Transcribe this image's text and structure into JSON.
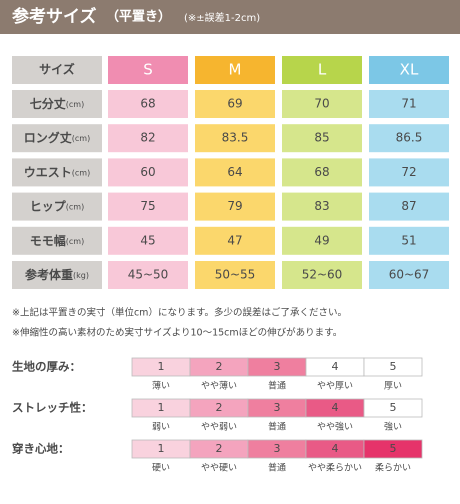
{
  "header": {
    "title": "参考サイズ",
    "subtitle": "（平置き）",
    "note": "(※±誤差1-2cm)"
  },
  "table": {
    "corner": "サイズ",
    "sizes": [
      {
        "name": "S",
        "color": "#f08db1",
        "light": "#f8c8d8"
      },
      {
        "name": "M",
        "color": "#f6b52f",
        "light": "#fbd76c"
      },
      {
        "name": "L",
        "color": "#b7d54b",
        "light": "#d6e68c"
      },
      {
        "name": "XL",
        "color": "#7cc7e6",
        "light": "#a9dcef"
      }
    ],
    "rows": [
      {
        "label": "七分丈",
        "unit": "(cm)",
        "values": [
          "68",
          "69",
          "70",
          "71"
        ]
      },
      {
        "label": "ロング丈",
        "unit": "(cm)",
        "values": [
          "82",
          "83.5",
          "85",
          "86.5"
        ]
      },
      {
        "label": "ウエスト",
        "unit": "(cm)",
        "values": [
          "60",
          "64",
          "68",
          "72"
        ]
      },
      {
        "label": "ヒップ",
        "unit": "(cm)",
        "values": [
          "75",
          "79",
          "83",
          "87"
        ]
      },
      {
        "label": "モモ幅",
        "unit": "(cm)",
        "values": [
          "45",
          "47",
          "49",
          "51"
        ]
      },
      {
        "label": "参考体重",
        "unit": "(kg)",
        "values": [
          "45~50",
          "50~55",
          "52~60",
          "60~67"
        ]
      }
    ]
  },
  "notes": [
    "※上記は平置きの実寸（単位cm）になります。多少の誤差はご了承ください。",
    "※伸縮性の高い素材のため実寸サイズより10～15cmほどの伸びがあります。"
  ],
  "scale_colors": [
    "#f9d2de",
    "#f4a4be",
    "#ef7f9f",
    "#e95a86",
    "#e6336a"
  ],
  "scales": [
    {
      "label": "生地の厚み：",
      "level": 3,
      "steps": [
        "1",
        "2",
        "3",
        "4",
        "5"
      ],
      "texts": [
        "薄い",
        "やや薄い",
        "普通",
        "やや厚い",
        "厚い"
      ]
    },
    {
      "label": "ストレッチ性：",
      "level": 4,
      "steps": [
        "1",
        "2",
        "3",
        "4",
        "5"
      ],
      "texts": [
        "弱い",
        "やや弱い",
        "普通",
        "やや強い",
        "強い"
      ]
    },
    {
      "label": "穿き心地：",
      "level": 5,
      "steps": [
        "1",
        "2",
        "3",
        "4",
        "5"
      ],
      "texts": [
        "硬い",
        "やや硬い",
        "普通",
        "やや柔らかい",
        "柔らかい"
      ]
    }
  ]
}
